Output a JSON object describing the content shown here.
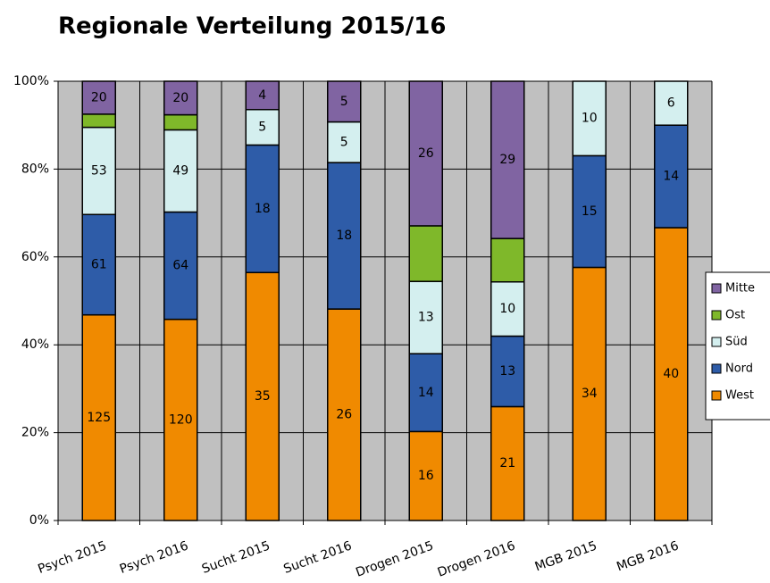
{
  "chart_data": {
    "type": "stacked_percent_bar",
    "title": "Regionale Verteilung 2015/16",
    "categories": [
      "Psych 2015",
      "Psych 2016",
      "Sucht 2015",
      "Sucht 2016",
      "Drogen 2015",
      "Drogen 2016",
      "MGB 2015",
      "MGB 2016"
    ],
    "series": [
      {
        "name": "West",
        "color": "#f08a00",
        "data_labels": true,
        "values": [
          125,
          120,
          35,
          26,
          16,
          21,
          34,
          40
        ]
      },
      {
        "name": "Nord",
        "color": "#2e5ca8",
        "data_labels": true,
        "values": [
          61,
          64,
          18,
          18,
          14,
          13,
          15,
          14
        ]
      },
      {
        "name": "Süd",
        "color": "#d4efef",
        "data_labels": true,
        "values": [
          53,
          49,
          5,
          5,
          13,
          10,
          10,
          6
        ]
      },
      {
        "name": "Ost",
        "color": "#7fb82a",
        "data_labels": false,
        "values": [
          8,
          9,
          0,
          0,
          10,
          8,
          0,
          0
        ]
      },
      {
        "name": "Mitte",
        "color": "#8064a2",
        "data_labels": true,
        "values": [
          20,
          20,
          4,
          5,
          26,
          29,
          0,
          0
        ]
      }
    ],
    "ylim": [
      0,
      100
    ],
    "yticks": [
      {
        "value": 0,
        "label": "0%"
      },
      {
        "value": 20,
        "label": "20%"
      },
      {
        "value": 40,
        "label": "40%"
      },
      {
        "value": 60,
        "label": "60%"
      },
      {
        "value": 80,
        "label": "80%"
      },
      {
        "value": 100,
        "label": "100%"
      }
    ],
    "grid": true,
    "legend": "right"
  }
}
